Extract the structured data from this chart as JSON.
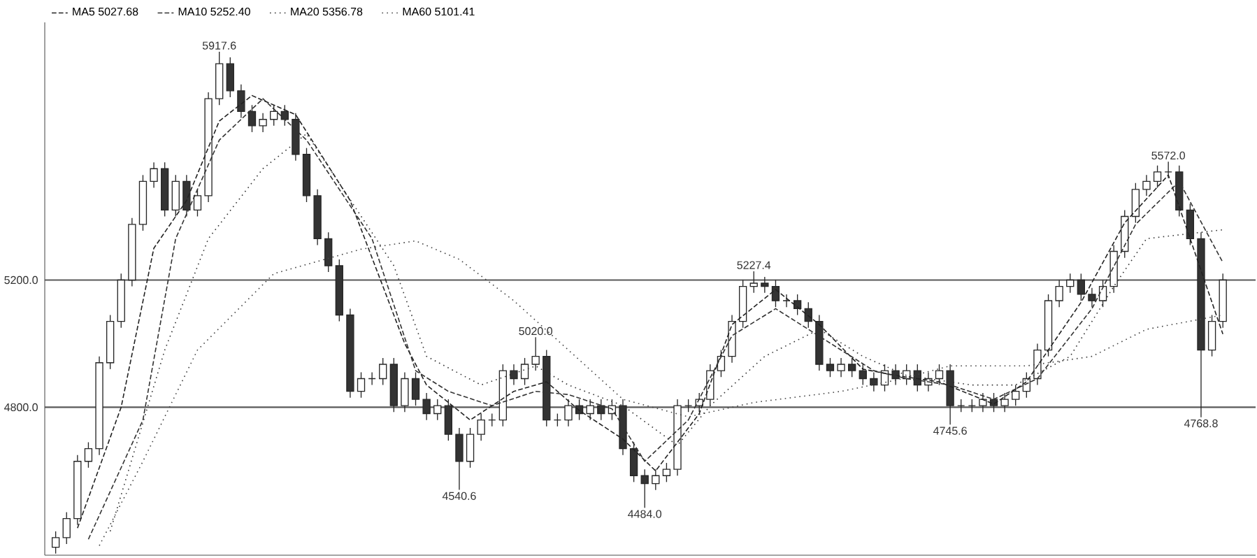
{
  "chart_data": {
    "type": "candlestick",
    "categories": [
      null,
      null,
      null,
      null,
      null,
      null,
      null,
      null,
      null,
      null,
      null,
      null,
      null,
      null,
      null,
      null,
      null,
      null,
      null,
      null,
      null,
      null,
      null,
      null,
      null,
      null,
      null,
      null,
      null,
      null,
      null,
      null,
      null,
      null,
      null,
      null,
      null,
      null,
      null,
      null,
      null,
      null,
      null,
      null,
      null,
      null,
      null,
      null,
      null,
      null,
      null,
      null,
      null,
      null,
      null,
      null,
      null,
      null,
      null,
      null,
      null,
      null,
      null,
      null,
      null,
      null,
      null,
      null,
      null,
      null,
      null,
      null,
      null,
      null,
      null,
      null,
      null,
      null,
      null,
      null,
      null,
      null,
      null,
      null,
      null,
      null,
      null,
      null,
      null,
      null,
      null,
      null,
      null,
      null,
      null,
      null,
      null,
      null,
      null,
      null,
      null,
      null,
      null,
      null,
      null,
      null,
      null,
      null
    ],
    "ohlc": [
      [
        4360,
        4410,
        4340,
        4390
      ],
      [
        4390,
        4470,
        4370,
        4450
      ],
      [
        4450,
        4650,
        4430,
        4630
      ],
      [
        4630,
        4690,
        4610,
        4670
      ],
      [
        4670,
        4960,
        4650,
        4940
      ],
      [
        4940,
        5090,
        4920,
        5070
      ],
      [
        5070,
        5220,
        5050,
        5200
      ],
      [
        5200,
        5395,
        5180,
        5375
      ],
      [
        5375,
        5530,
        5355,
        5510
      ],
      [
        5510,
        5570,
        5490,
        5550
      ],
      [
        5550,
        5570,
        5400,
        5420
      ],
      [
        5420,
        5530,
        5400,
        5510
      ],
      [
        5510,
        5530,
        5400,
        5420
      ],
      [
        5420,
        5485,
        5400,
        5465
      ],
      [
        5465,
        5790,
        5445,
        5770
      ],
      [
        5770,
        5917.6,
        5750,
        5880
      ],
      [
        5880,
        5900,
        5775,
        5795
      ],
      [
        5795,
        5815,
        5710,
        5730
      ],
      [
        5730,
        5750,
        5665,
        5685
      ],
      [
        5685,
        5725,
        5665,
        5705
      ],
      [
        5705,
        5750,
        5685,
        5730
      ],
      [
        5730,
        5750,
        5685,
        5705
      ],
      [
        5705,
        5725,
        5575,
        5595
      ],
      [
        5595,
        5615,
        5445,
        5465
      ],
      [
        5465,
        5485,
        5310,
        5330
      ],
      [
        5330,
        5350,
        5225,
        5245
      ],
      [
        5245,
        5265,
        5070,
        5090
      ],
      [
        5090,
        5110,
        4830,
        4850
      ],
      [
        4850,
        4910,
        4830,
        4890
      ],
      [
        4890,
        4910,
        4870,
        4890
      ],
      [
        4890,
        4955,
        4870,
        4935
      ],
      [
        4935,
        4955,
        4785,
        4805
      ],
      [
        4805,
        4910,
        4785,
        4890
      ],
      [
        4890,
        4910,
        4805,
        4825
      ],
      [
        4825,
        4845,
        4760,
        4780
      ],
      [
        4780,
        4825,
        4760,
        4805
      ],
      [
        4805,
        4825,
        4695,
        4715
      ],
      [
        4715,
        4735,
        4540.6,
        4630
      ],
      [
        4630,
        4735,
        4610,
        4715
      ],
      [
        4715,
        4780,
        4695,
        4760
      ],
      [
        4760,
        4780,
        4740,
        4760
      ],
      [
        4760,
        4935,
        4740,
        4915
      ],
      [
        4915,
        4935,
        4870,
        4890
      ],
      [
        4890,
        4955,
        4870,
        4935
      ],
      [
        4935,
        5020,
        4915,
        4960
      ],
      [
        4960,
        4980,
        4740,
        4760
      ],
      [
        4760,
        4780,
        4740,
        4760
      ],
      [
        4760,
        4825,
        4740,
        4805
      ],
      [
        4805,
        4825,
        4760,
        4780
      ],
      [
        4780,
        4825,
        4760,
        4805
      ],
      [
        4805,
        4825,
        4760,
        4780
      ],
      [
        4780,
        4825,
        4760,
        4805
      ],
      [
        4805,
        4825,
        4650,
        4670
      ],
      [
        4670,
        4690,
        4565,
        4585
      ],
      [
        4585,
        4605,
        4484,
        4560
      ],
      [
        4560,
        4605,
        4540,
        4585
      ],
      [
        4585,
        4625,
        4565,
        4605
      ],
      [
        4605,
        4825,
        4585,
        4805
      ],
      [
        4805,
        4825,
        4785,
        4805
      ],
      [
        4805,
        4845,
        4785,
        4825
      ],
      [
        4825,
        4935,
        4805,
        4915
      ],
      [
        4915,
        4980,
        4895,
        4960
      ],
      [
        4960,
        5090,
        4940,
        5070
      ],
      [
        5070,
        5200,
        5050,
        5180
      ],
      [
        5180,
        5227.4,
        5160,
        5190
      ],
      [
        5190,
        5210,
        5160,
        5180
      ],
      [
        5180,
        5200,
        5115,
        5135
      ],
      [
        5135,
        5155,
        5115,
        5135
      ],
      [
        5135,
        5155,
        5090,
        5110
      ],
      [
        5110,
        5130,
        5050,
        5070
      ],
      [
        5070,
        5090,
        4915,
        4935
      ],
      [
        4935,
        4955,
        4895,
        4915
      ],
      [
        4915,
        4955,
        4895,
        4935
      ],
      [
        4935,
        4955,
        4895,
        4915
      ],
      [
        4915,
        4935,
        4870,
        4890
      ],
      [
        4890,
        4910,
        4850,
        4870
      ],
      [
        4870,
        4935,
        4850,
        4915
      ],
      [
        4915,
        4935,
        4870,
        4890
      ],
      [
        4890,
        4935,
        4870,
        4915
      ],
      [
        4915,
        4935,
        4850,
        4870
      ],
      [
        4870,
        4910,
        4850,
        4890
      ],
      [
        4890,
        4935,
        4870,
        4915
      ],
      [
        4915,
        4935,
        4745.6,
        4805
      ],
      [
        4805,
        4825,
        4785,
        4805
      ],
      [
        4805,
        4825,
        4785,
        4805
      ],
      [
        4805,
        4845,
        4785,
        4825
      ],
      [
        4825,
        4845,
        4785,
        4805
      ],
      [
        4805,
        4845,
        4785,
        4825
      ],
      [
        4825,
        4870,
        4805,
        4850
      ],
      [
        4850,
        4910,
        4830,
        4890
      ],
      [
        4890,
        5000,
        4870,
        4980
      ],
      [
        4980,
        5155,
        4960,
        5135
      ],
      [
        5135,
        5200,
        5115,
        5180
      ],
      [
        5180,
        5220,
        5160,
        5200
      ],
      [
        5200,
        5220,
        5135,
        5155
      ],
      [
        5155,
        5175,
        5115,
        5135
      ],
      [
        5135,
        5200,
        5115,
        5180
      ],
      [
        5180,
        5310,
        5160,
        5290
      ],
      [
        5290,
        5420,
        5270,
        5400
      ],
      [
        5400,
        5505,
        5380,
        5485
      ],
      [
        5485,
        5530,
        5465,
        5510
      ],
      [
        5510,
        5560,
        5490,
        5540
      ],
      [
        5540,
        5572,
        5520,
        5540
      ],
      [
        5540,
        5560,
        5400,
        5420
      ],
      [
        5420,
        5440,
        5310,
        5330
      ],
      [
        5330,
        5350,
        4768.8,
        4980
      ],
      [
        4980,
        5090,
        4960,
        5070
      ],
      [
        5070,
        5220,
        5050,
        5200
      ]
    ],
    "series": [
      {
        "name": "MA5 5027.68",
        "type": "line",
        "color": "#222222",
        "line_style": "dashed",
        "values": [
          null,
          null,
          4420,
          null,
          null,
          null,
          4800,
          null,
          null,
          5300,
          null,
          null,
          5450,
          null,
          null,
          5700,
          null,
          null,
          5780,
          null,
          null,
          null,
          5720,
          null,
          null,
          null,
          null,
          5450,
          null,
          null,
          null,
          null,
          5000,
          null,
          4870,
          null,
          null,
          null,
          4760,
          null,
          null,
          null,
          4850,
          null,
          null,
          4880,
          null,
          null,
          4790,
          null,
          null,
          null,
          4700,
          null,
          null,
          4600,
          null,
          null,
          null,
          4780,
          null,
          null,
          5060,
          null,
          null,
          null,
          5170,
          null,
          null,
          null,
          5060,
          null,
          null,
          null,
          4920,
          null,
          null,
          4900,
          null,
          null,
          null,
          4880,
          null,
          null,
          null,
          null,
          4810,
          null,
          null,
          4880,
          null,
          null,
          null,
          null,
          5130,
          null,
          null,
          null,
          5380,
          null,
          null,
          null,
          5530,
          null,
          null,
          null,
          null,
          5030
        ]
      },
      {
        "name": "MA10 5252.40",
        "type": "line",
        "color": "#333333",
        "line_style": "dashed",
        "values": [
          null,
          null,
          null,
          4385,
          null,
          null,
          null,
          null,
          4760,
          null,
          null,
          5330,
          null,
          null,
          null,
          5640,
          null,
          null,
          null,
          5770,
          null,
          null,
          null,
          5640,
          null,
          null,
          null,
          null,
          null,
          5330,
          null,
          null,
          null,
          4915,
          null,
          null,
          4850,
          null,
          null,
          null,
          4805,
          null,
          null,
          null,
          4850,
          null,
          null,
          4840,
          null,
          null,
          null,
          4795,
          null,
          null,
          4630,
          null,
          null,
          null,
          4760,
          null,
          null,
          null,
          5025,
          null,
          null,
          null,
          5110,
          null,
          null,
          null,
          null,
          null,
          4980,
          null,
          null,
          4915,
          null,
          null,
          4890,
          null,
          null,
          null,
          4870,
          null,
          null,
          null,
          4825,
          null,
          null,
          null,
          4890,
          null,
          null,
          null,
          null,
          5110,
          null,
          null,
          null,
          5375,
          null,
          null,
          null,
          5510,
          null,
          null,
          null,
          5255
        ]
      },
      {
        "name": "MA20 5356.78",
        "type": "line",
        "color": "#333333",
        "line_style": "dotted",
        "values": [
          null,
          null,
          null,
          null,
          null,
          4410,
          null,
          null,
          null,
          null,
          4980,
          null,
          null,
          null,
          5330,
          null,
          null,
          null,
          null,
          5550,
          null,
          null,
          null,
          5660,
          null,
          null,
          null,
          null,
          null,
          null,
          null,
          5245,
          null,
          null,
          4960,
          null,
          null,
          null,
          null,
          4870,
          null,
          null,
          null,
          null,
          4930,
          null,
          null,
          4870,
          null,
          null,
          null,
          null,
          4805,
          null,
          null,
          null,
          null,
          4680,
          null,
          null,
          4805,
          null,
          null,
          null,
          null,
          4960,
          null,
          null,
          null,
          null,
          5045,
          null,
          null,
          null,
          4960,
          null,
          null,
          null,
          4900,
          null,
          null,
          null,
          null,
          null,
          4870,
          null,
          null,
          null,
          4870,
          null,
          null,
          null,
          null,
          4960,
          null,
          null,
          null,
          5180,
          null,
          null,
          5330,
          null,
          null,
          null,
          null,
          null,
          null,
          5358
        ]
      },
      {
        "name": "MA60 5101.41",
        "type": "line",
        "color": "#444444",
        "line_style": "dotted",
        "values": [
          null,
          null,
          null,
          null,
          4365,
          null,
          null,
          null,
          4630,
          null,
          null,
          null,
          null,
          4980,
          null,
          null,
          null,
          null,
          null,
          null,
          5220,
          null,
          null,
          null,
          null,
          null,
          null,
          null,
          5297,
          null,
          null,
          null,
          null,
          5323,
          null,
          null,
          null,
          5265,
          null,
          null,
          null,
          null,
          5135,
          null,
          null,
          null,
          null,
          4980,
          null,
          null,
          null,
          null,
          4825,
          null,
          null,
          null,
          null,
          null,
          4770,
          null,
          null,
          null,
          null,
          null,
          4815,
          null,
          null,
          null,
          null,
          null,
          null,
          null,
          4850,
          null,
          null,
          null,
          null,
          4885,
          null,
          null,
          null,
          null,
          4930,
          null,
          null,
          null,
          null,
          null,
          null,
          4930,
          null,
          null,
          null,
          null,
          null,
          4960,
          null,
          null,
          null,
          null,
          5045,
          null,
          null,
          null,
          null,
          null,
          null,
          5090
        ]
      }
    ],
    "ylim": [
      4335,
      6010
    ],
    "yticks": [
      {
        "value": 5200,
        "label": "5200.0"
      },
      {
        "value": 4800,
        "label": "4800.0"
      }
    ],
    "grid": "y",
    "legend": "top left",
    "annotations": [
      {
        "text": "5917.6",
        "y": 5917.6
      },
      {
        "text": "4540.6",
        "y": 4540.6
      },
      {
        "text": "5020.0",
        "y": 5020.0
      },
      {
        "text": "4484.0",
        "y": 4484
      },
      {
        "text": "5227.4",
        "y": 5227.4
      },
      {
        "text": "4745.6",
        "y": 4745.6
      },
      {
        "text": "5572.0",
        "y": 5572.0
      },
      {
        "text": "4768.8",
        "y": 4768.8
      }
    ]
  }
}
